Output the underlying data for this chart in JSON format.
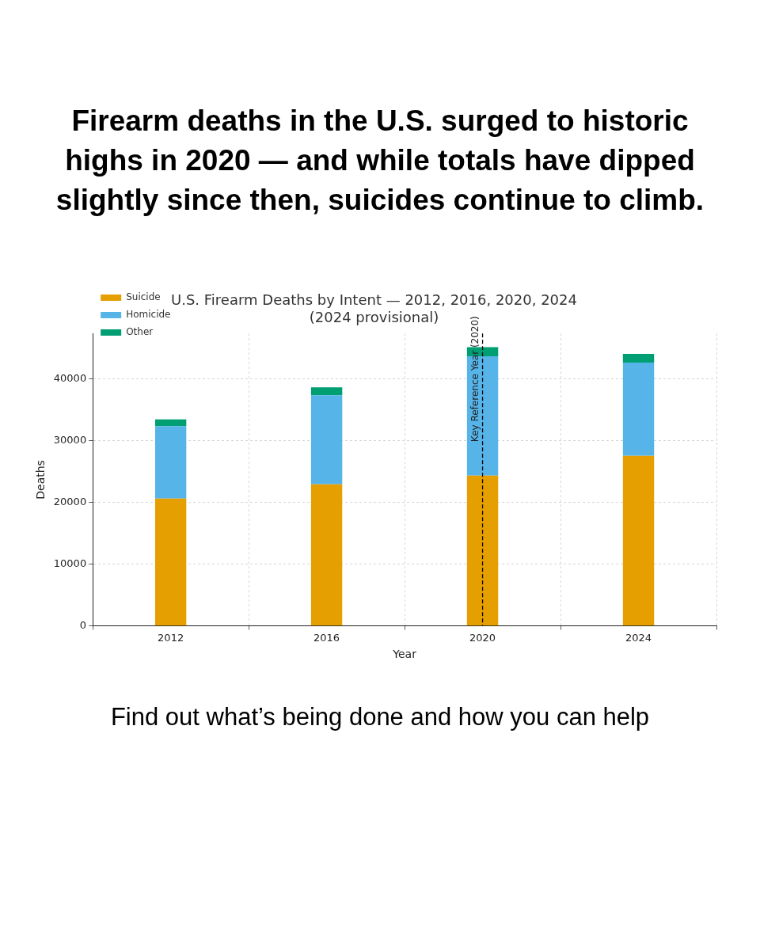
{
  "chart_data": {
    "type": "bar",
    "stacked": true,
    "title": "Firearm deaths in the U.S. surged to historic highs in 2020 — and while totals have dipped slightly since then, suicides continue to climb.",
    "subtitle": "U.S. Firearm Deaths by Intent — 2012, 2016, 2020, 2024\n(2024 provisional)",
    "xlabel": "Year",
    "ylabel": "Deaths",
    "categories": [
      "2012",
      "2016",
      "2020",
      "2024"
    ],
    "series": [
      {
        "name": "Suicide",
        "color": "#e69f00",
        "values": [
          20600,
          22900,
          24300,
          27500
        ]
      },
      {
        "name": "Homicide",
        "color": "#56b4e9",
        "values": [
          11700,
          14400,
          19300,
          15100
        ]
      },
      {
        "name": "Other",
        "color": "#009e73",
        "values": [
          1100,
          1300,
          1500,
          1400
        ]
      }
    ],
    "ylim": [
      0,
      47300
    ],
    "yticks": [
      0,
      10000,
      20000,
      30000,
      40000
    ],
    "grid": true,
    "legend": "top left",
    "ref_lines": [
      {
        "axis": "x",
        "value": "2020",
        "label": "Key Reference Year (2020)",
        "color": "#000000",
        "line_style": "dashed"
      }
    ],
    "annotations": [
      "Find out what’s being done and how you can help"
    ]
  }
}
